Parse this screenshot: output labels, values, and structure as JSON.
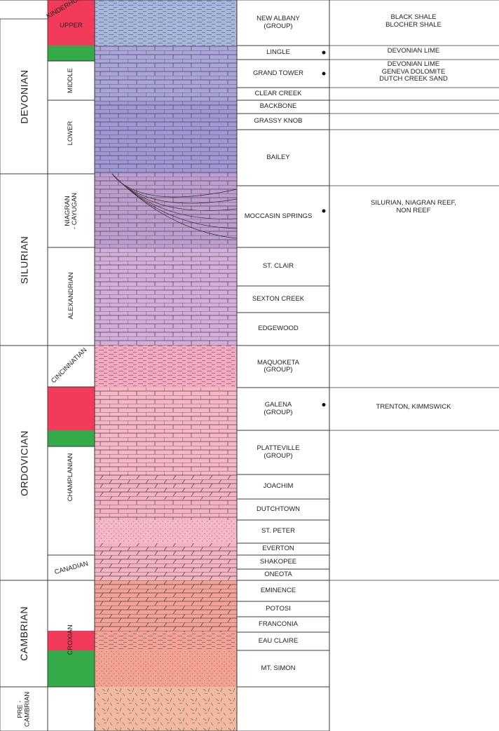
{
  "systems": [
    "DEVONIAN",
    "SILURIAN",
    "ORDOVICIAN",
    "CAMBRIAN",
    "PRE -\nCAMBRIAN"
  ],
  "series": [
    "KINDERHOOKIAN",
    "UPPER",
    "MIDDLE",
    "LOWER",
    "NIAGRAN\n- CAYUGAN",
    "ALEXANDRIAN",
    "CINCINNATIAN",
    "CHAMPLANIAN",
    "CANADIAN",
    "CROXIAN"
  ],
  "formations": [
    "NEW ALBANY\n(GROUP)",
    "LINGLE",
    "GRAND TOWER",
    "CLEAR CREEK",
    "BACKBONE",
    "GRASSY KNOB",
    "BAILEY",
    "MOCCASIN SPRINGS",
    "ST. CLAIR",
    "SEXTON CREEK",
    "EDGEWOOD",
    "MAQUOKETA\n(GROUP)",
    "GALENA\n(GROUP)",
    "PLATTEVILLE\n(GROUP)",
    "JOACHIM",
    "DUTCHTOWN",
    "ST. PETER",
    "EVERTON",
    "SHAKOPEE",
    "ONEOTA",
    "EMINENCE",
    "POTOSI",
    "FRANCONIA",
    "EAU CLAIRE",
    "MT. SIMON"
  ],
  "notes": [
    "BLACK SHALE\nBLOCHER SHALE",
    "DEVONIAN LIME",
    "DEVONIAN LIME\nGENEVA DOLOMITE\nDUTCH CREEK SAND",
    "SILURIAN, NIAGRAN REEF,\nNON REEF",
    "TRENTON, KIMMSWICK"
  ]
}
